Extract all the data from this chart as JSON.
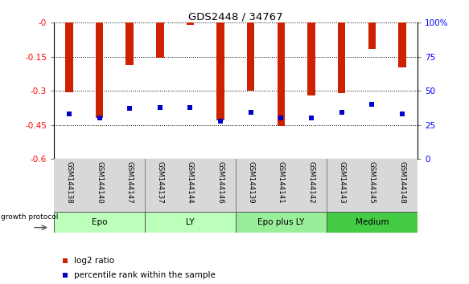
{
  "title": "GDS2448 / 34767",
  "samples": [
    "GSM144138",
    "GSM144140",
    "GSM144147",
    "GSM144137",
    "GSM144144",
    "GSM144146",
    "GSM144139",
    "GSM144141",
    "GSM144142",
    "GSM144143",
    "GSM144145",
    "GSM144148"
  ],
  "log2_ratio": [
    -0.305,
    -0.42,
    -0.185,
    -0.155,
    -0.01,
    -0.43,
    -0.3,
    -0.455,
    -0.32,
    -0.31,
    -0.115,
    -0.195
  ],
  "percentile_rank": [
    33,
    30,
    37,
    38,
    38,
    28,
    34,
    30,
    30,
    34,
    40,
    33
  ],
  "group_spans": [
    {
      "label": "Epo",
      "start": 0,
      "end": 3,
      "color": "#bbffbb"
    },
    {
      "label": "LY",
      "start": 3,
      "end": 6,
      "color": "#bbffbb"
    },
    {
      "label": "Epo plus LY",
      "start": 6,
      "end": 9,
      "color": "#99ee99"
    },
    {
      "label": "Medium",
      "start": 9,
      "end": 12,
      "color": "#44cc44"
    }
  ],
  "ylim_left": [
    -0.6,
    0.0
  ],
  "ylim_right": [
    0,
    100
  ],
  "yticks_left": [
    0.0,
    -0.15,
    -0.3,
    -0.45,
    -0.6
  ],
  "ytick_labels_left": [
    "-0",
    "-0.15",
    "-0.3",
    "-0.45",
    "-0.6"
  ],
  "yticks_right": [
    0,
    25,
    50,
    75,
    100
  ],
  "ytick_labels_right": [
    "0",
    "25",
    "50",
    "75",
    "100%"
  ],
  "bar_color": "#cc2200",
  "dot_color": "#0000cc",
  "bar_width": 0.25,
  "dot_size": 18,
  "label_bg_color": "#d8d8d8",
  "label_divider_color": "#888888"
}
